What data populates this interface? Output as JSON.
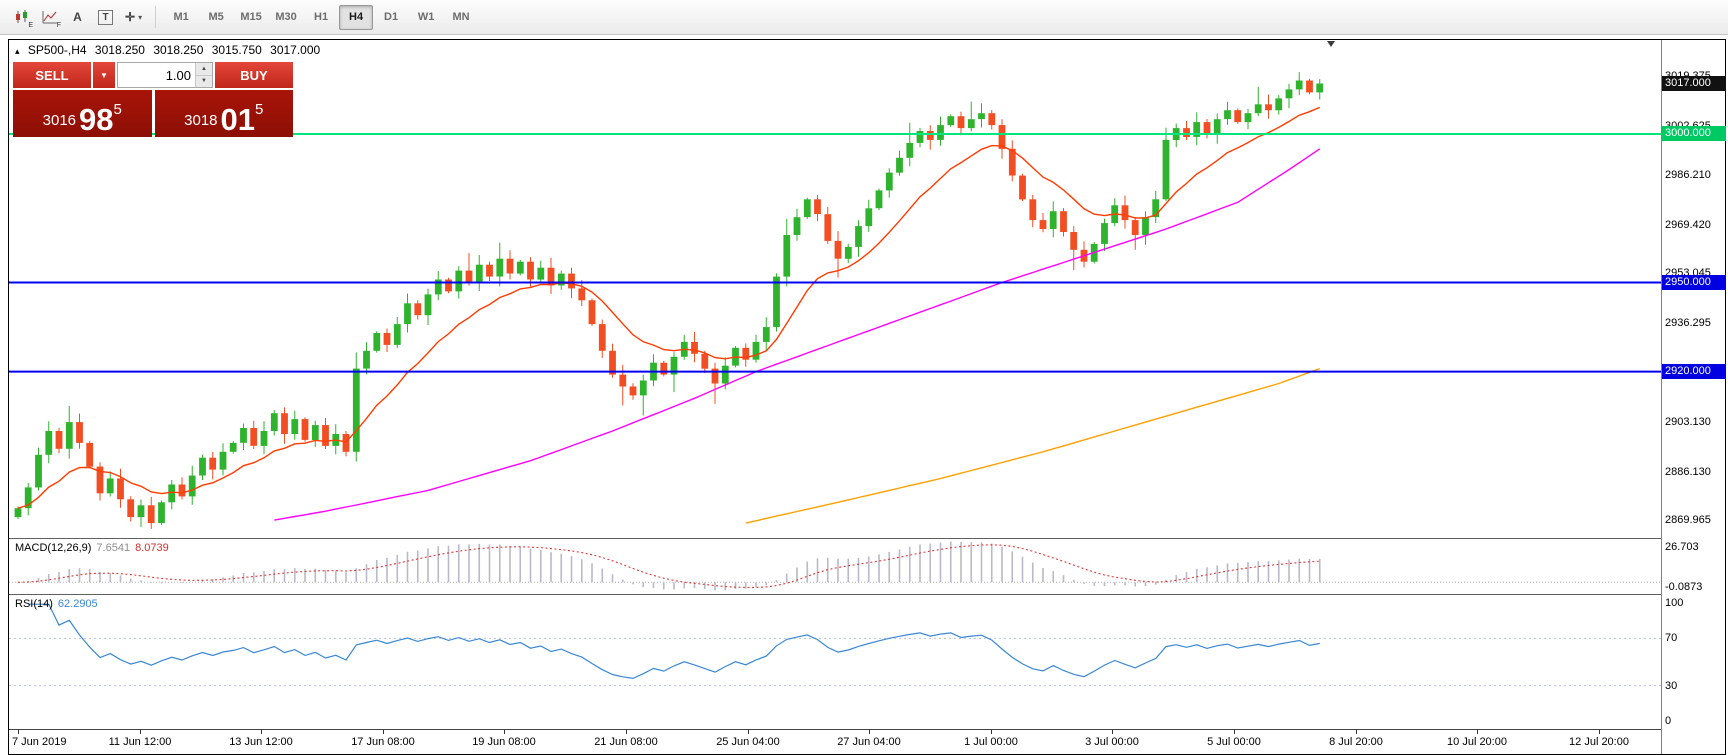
{
  "toolbar": {
    "tools": [
      {
        "name": "candlestick-chart-icon",
        "sub": "E"
      },
      {
        "name": "indicators-grid-icon",
        "sub": "F"
      },
      {
        "name": "text-annotation-icon",
        "glyph": "A"
      },
      {
        "name": "text-box-icon",
        "glyph": "T"
      },
      {
        "name": "crosshair-tool-icon",
        "glyph": "✛",
        "dropdown": "▾"
      }
    ],
    "timeframes": [
      "M1",
      "M5",
      "M15",
      "M30",
      "H1",
      "H4",
      "D1",
      "W1",
      "MN"
    ],
    "active_timeframe": "H4"
  },
  "chart": {
    "title": {
      "toggle": "▴",
      "symbol_period": "SP500-,H4",
      "open": "3018.250",
      "high": "3018.250",
      "low": "3015.750",
      "close": "3017.000"
    },
    "price_axis": {
      "labels": [
        {
          "v": 3019.375,
          "t": "3019.375"
        },
        {
          "v": 3002.625,
          "t": "3002.625"
        },
        {
          "v": 2986.21,
          "t": "2986.210"
        },
        {
          "v": 2969.42,
          "t": "2969.420"
        },
        {
          "v": 2953.045,
          "t": "2953.045"
        },
        {
          "v": 2936.295,
          "t": "2936.295"
        },
        {
          "v": 2903.13,
          "t": "2903.130"
        },
        {
          "v": 2886.13,
          "t": "2886.130"
        },
        {
          "v": 2869.965,
          "t": "2869.965"
        }
      ],
      "badges": [
        {
          "v": 3017.0,
          "t": "3017.000",
          "bg": "#111111",
          "fg": "#ffffff"
        },
        {
          "v": 3000.0,
          "t": "3000.000",
          "bg": "#00c964",
          "fg": "#ffffff"
        },
        {
          "v": 2950.0,
          "t": "2950.000",
          "bg": "#0000e0",
          "fg": "#ffffff"
        },
        {
          "v": 2920.0,
          "t": "2920.000",
          "bg": "#0000e0",
          "fg": "#ffffff"
        }
      ]
    },
    "hlines": [
      {
        "price": 3000.0,
        "color": "#00e57e"
      },
      {
        "price": 2950.0,
        "color": "#0000f0"
      },
      {
        "price": 2920.0,
        "color": "#0000f0"
      }
    ],
    "time_axis": [
      "7 Jun 2019",
      "11 Jun 12:00",
      "13 Jun 12:00",
      "17 Jun 08:00",
      "19 Jun 08:00",
      "21 Jun 08:00",
      "25 Jun 04:00",
      "27 Jun 04:00",
      "1 Jul 00:00",
      "3 Jul 00:00",
      "5 Jul 00:00",
      "8 Jul 20:00",
      "10 Jul 20:00",
      "12 Jul 20:00"
    ]
  },
  "trade": {
    "sell_label": "SELL",
    "buy_label": "BUY",
    "volume": "1.00",
    "sell_price": {
      "prefix": "3016",
      "big": "98",
      "sup": "5"
    },
    "buy_price": {
      "prefix": "3018",
      "big": "01",
      "sup": "5"
    }
  },
  "indicators": {
    "macd": {
      "label": "MACD(12,26,9)",
      "value_main": "7.6541",
      "value_signal": "8.0739",
      "axis_top": "26.703",
      "axis_bottom": "-0.0873"
    },
    "rsi": {
      "label": "RSI(14)",
      "value": "62.2905",
      "axis": [
        100,
        70,
        30,
        0
      ],
      "levels": [
        70,
        30
      ]
    }
  },
  "chart_data": {
    "type": "candlestick",
    "symbol": "SP500-",
    "period": "H4",
    "ylim": [
      2866,
      3031
    ],
    "first_open": 2871,
    "closes": [
      2874,
      2881,
      2892,
      2900,
      2894,
      2903,
      2896,
      2888,
      2879,
      2884,
      2877,
      2871,
      2875,
      2869,
      2876,
      2882,
      2878,
      2885,
      2891,
      2887,
      2893,
      2896,
      2901,
      2895,
      2900,
      2906,
      2899,
      2904,
      2897,
      2902,
      2895,
      2899,
      2893,
      2921,
      2927,
      2933,
      2929,
      2936,
      2943,
      2939,
      2946,
      2951,
      2947,
      2954,
      2950,
      2956,
      2952,
      2958,
      2953,
      2957,
      2951,
      2955,
      2949,
      2953,
      2948,
      2944,
      2936,
      2927,
      2919,
      2915,
      2912,
      2917,
      2923,
      2919,
      2925,
      2930,
      2926,
      2921,
      2916,
      2922,
      2928,
      2924,
      2930,
      2935,
      2952,
      2966,
      2972,
      2978,
      2973,
      2964,
      2958,
      2962,
      2969,
      2975,
      2981,
      2987,
      2992,
      2997,
      3001,
      2998,
      3003,
      3006,
      3002,
      3005,
      3007,
      3003,
      2995,
      2986,
      2978,
      2971,
      2968,
      2974,
      2967,
      2961,
      2957,
      2963,
      2970,
      2976,
      2971,
      2966,
      2972,
      2978,
      2998,
      3002,
      2999,
      3004,
      3000,
      3005,
      3008,
      3004,
      3007,
      3010,
      3008,
      3012,
      3015,
      3018,
      3014,
      3017
    ],
    "long_upper_wicks": [
      5,
      33,
      44,
      47,
      75,
      87,
      93,
      112,
      121
    ],
    "long_lower_wicks": [
      59,
      61,
      64,
      68,
      80,
      103,
      109
    ],
    "overlays": {
      "ma_fast": {
        "color": "#ff3c00",
        "type": "ema",
        "period": 12
      },
      "ma_mid": {
        "color": "#ff00ff",
        "points": [
          [
            25,
            2870
          ],
          [
            30,
            2873
          ],
          [
            40,
            2880
          ],
          [
            50,
            2890
          ],
          [
            58,
            2900
          ],
          [
            66,
            2911
          ],
          [
            72,
            2920
          ],
          [
            80,
            2930
          ],
          [
            88,
            2940
          ],
          [
            96,
            2950
          ],
          [
            104,
            2959
          ],
          [
            112,
            2968
          ],
          [
            119,
            2977
          ],
          [
            124,
            2988
          ],
          [
            127,
            2995
          ]
        ]
      },
      "ma_slow": {
        "color": "#ffa000",
        "points": [
          [
            71,
            2869
          ],
          [
            80,
            2876
          ],
          [
            90,
            2884
          ],
          [
            100,
            2893
          ],
          [
            110,
            2903
          ],
          [
            118,
            2911
          ],
          [
            123,
            2916
          ],
          [
            127,
            2921
          ]
        ]
      }
    },
    "colors": {
      "bull": "#2fb32f",
      "bear": "#f14e24",
      "macd_hist": "#b9b9c9",
      "macd_signal": "#e03636",
      "rsi": "#3a87d4"
    }
  }
}
